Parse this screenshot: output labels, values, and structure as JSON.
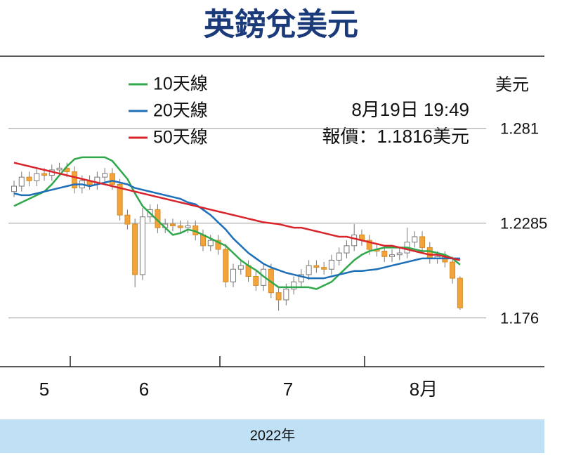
{
  "chart_data": {
    "type": "candlestick",
    "title": "英鎊兌美元",
    "y_label": "美元",
    "annotation": [
      "8月19日 19:49",
      "報價：1.1816美元"
    ],
    "x_labels": [
      "5",
      "6",
      "7",
      "8月"
    ],
    "x_title": "2022年",
    "ylim": [
      1.149,
      1.321
    ],
    "yticks": [
      1.281,
      1.2285,
      1.176
    ],
    "grid": true,
    "candles": {
      "up_color": "#ffffff",
      "down_color": "#f2a43a",
      "open": [
        1.246,
        1.249,
        1.254,
        1.252,
        1.256,
        1.255,
        1.258,
        1.259,
        1.257,
        1.248,
        1.252,
        1.25,
        1.254,
        1.256,
        1.25,
        1.233,
        1.228,
        1.2,
        1.232,
        1.236,
        1.226,
        1.228,
        1.227,
        1.226,
        1.227,
        1.222,
        1.216,
        1.219,
        1.214,
        1.196,
        1.203,
        1.205,
        1.199,
        1.194,
        1.203,
        1.19,
        1.186,
        1.192,
        1.196,
        1.2,
        1.205,
        1.204,
        1.203,
        1.208,
        1.212,
        1.216,
        1.222,
        1.219,
        1.214,
        1.213,
        1.21,
        1.211,
        1.212,
        1.218,
        1.221,
        1.215,
        1.209,
        1.21,
        1.207,
        1.198
      ],
      "high": [
        1.252,
        1.257,
        1.257,
        1.259,
        1.259,
        1.261,
        1.262,
        1.262,
        1.26,
        1.255,
        1.255,
        1.257,
        1.259,
        1.259,
        1.253,
        1.236,
        1.231,
        1.237,
        1.239,
        1.239,
        1.231,
        1.231,
        1.23,
        1.23,
        1.23,
        1.225,
        1.222,
        1.222,
        1.217,
        1.206,
        1.208,
        1.208,
        1.202,
        1.206,
        1.206,
        1.193,
        1.195,
        1.199,
        1.203,
        1.208,
        1.208,
        1.207,
        1.211,
        1.215,
        1.219,
        1.228,
        1.225,
        1.222,
        1.217,
        1.216,
        1.214,
        1.215,
        1.226,
        1.224,
        1.224,
        1.218,
        1.213,
        1.213,
        1.21,
        1.199
      ],
      "low": [
        1.243,
        1.246,
        1.249,
        1.249,
        1.252,
        1.252,
        1.255,
        1.254,
        1.245,
        1.245,
        1.247,
        1.247,
        1.251,
        1.247,
        1.23,
        1.225,
        1.193,
        1.197,
        1.229,
        1.223,
        1.223,
        1.224,
        1.223,
        1.223,
        1.219,
        1.213,
        1.213,
        1.211,
        1.193,
        1.193,
        1.2,
        1.196,
        1.191,
        1.191,
        1.187,
        1.18,
        1.183,
        1.189,
        1.193,
        1.197,
        1.201,
        1.2,
        1.2,
        1.205,
        1.209,
        1.213,
        1.216,
        1.211,
        1.21,
        1.207,
        1.207,
        1.208,
        1.209,
        1.215,
        1.212,
        1.206,
        1.206,
        1.204,
        1.195,
        1.1805
      ],
      "close": [
        1.249,
        1.254,
        1.252,
        1.256,
        1.255,
        1.258,
        1.259,
        1.257,
        1.248,
        1.252,
        1.25,
        1.254,
        1.256,
        1.25,
        1.233,
        1.228,
        1.2,
        1.232,
        1.236,
        1.226,
        1.228,
        1.227,
        1.226,
        1.227,
        1.222,
        1.216,
        1.219,
        1.214,
        1.196,
        1.203,
        1.205,
        1.199,
        1.194,
        1.203,
        1.19,
        1.186,
        1.192,
        1.196,
        1.2,
        1.205,
        1.204,
        1.203,
        1.208,
        1.212,
        1.216,
        1.222,
        1.219,
        1.214,
        1.213,
        1.21,
        1.211,
        1.212,
        1.218,
        1.221,
        1.215,
        1.209,
        1.21,
        1.207,
        1.198,
        1.1816
      ]
    },
    "series": [
      {
        "name": "10天線",
        "color": "#2ea84a",
        "values": [
          1.238,
          1.24,
          1.242,
          1.244,
          1.246,
          1.25,
          1.255,
          1.26,
          1.264,
          1.265,
          1.265,
          1.265,
          1.265,
          1.263,
          1.258,
          1.253,
          1.245,
          1.238,
          1.234,
          1.23,
          1.226,
          1.222,
          1.223,
          1.225,
          1.224,
          1.222,
          1.22,
          1.218,
          1.216,
          1.212,
          1.208,
          1.205,
          1.2025,
          1.199,
          1.196,
          1.193,
          1.193,
          1.193,
          1.193,
          1.193,
          1.192,
          1.194,
          1.196,
          1.2,
          1.204,
          1.208,
          1.211,
          1.213,
          1.214,
          1.215,
          1.215,
          1.215,
          1.215,
          1.214,
          1.213,
          1.213,
          1.212,
          1.211,
          1.209,
          1.2055
        ]
      },
      {
        "name": "20天線",
        "color": "#1d6fb8",
        "values": [
          1.245,
          1.244,
          1.244,
          1.245,
          1.246,
          1.247,
          1.248,
          1.249,
          1.25,
          1.25,
          1.249,
          1.25,
          1.251,
          1.252,
          1.251,
          1.25,
          1.248,
          1.247,
          1.246,
          1.245,
          1.244,
          1.243,
          1.242,
          1.24,
          1.239,
          1.236,
          1.233,
          1.229,
          1.225,
          1.22,
          1.216,
          1.212,
          1.209,
          1.206,
          1.204,
          1.2025,
          1.201,
          1.2,
          1.199,
          1.198,
          1.198,
          1.198,
          1.199,
          1.2,
          1.201,
          1.202,
          1.202,
          1.2025,
          1.203,
          1.204,
          1.205,
          1.206,
          1.207,
          1.208,
          1.209,
          1.209,
          1.209,
          1.209,
          1.209,
          1.209
        ]
      },
      {
        "name": "50天線",
        "color": "#d8242a",
        "values": [
          1.262,
          1.261,
          1.26,
          1.259,
          1.258,
          1.257,
          1.256,
          1.255,
          1.254,
          1.253,
          1.252,
          1.251,
          1.25,
          1.249,
          1.248,
          1.247,
          1.246,
          1.245,
          1.244,
          1.243,
          1.242,
          1.241,
          1.24,
          1.239,
          1.238,
          1.237,
          1.236,
          1.235,
          1.234,
          1.233,
          1.232,
          1.231,
          1.23,
          1.229,
          1.2285,
          1.228,
          1.227,
          1.226,
          1.226,
          1.225,
          1.224,
          1.223,
          1.222,
          1.221,
          1.221,
          1.22,
          1.219,
          1.218,
          1.217,
          1.216,
          1.216,
          1.215,
          1.214,
          1.213,
          1.212,
          1.211,
          1.211,
          1.21,
          1.209,
          1.208
        ]
      }
    ]
  }
}
